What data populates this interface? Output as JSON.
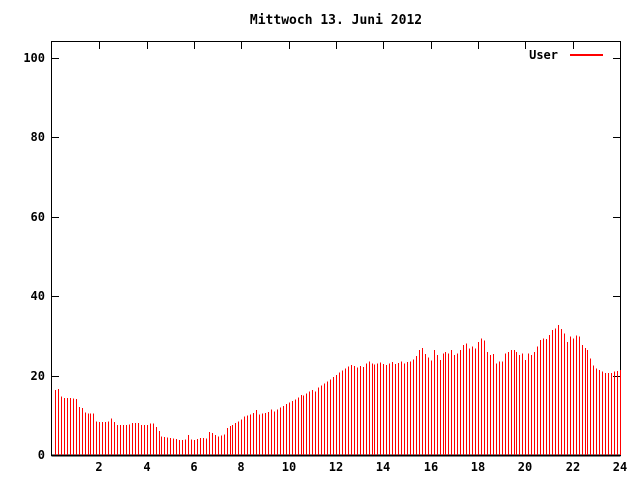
{
  "chart_data": {
    "type": "bar",
    "style": "impulses",
    "title": "Mittwoch 13. Juni 2012",
    "xlabel": "",
    "ylabel": "",
    "xlim": [
      0,
      24
    ],
    "ylim": [
      0,
      104
    ],
    "xticks": [
      2,
      4,
      6,
      8,
      10,
      12,
      14,
      16,
      18,
      20,
      22,
      24
    ],
    "yticks": [
      0,
      20,
      40,
      60,
      80,
      100
    ],
    "grid": false,
    "legend_position": "top-right",
    "background": "#ffffff",
    "border_color": "#000000",
    "text_color": "#000000",
    "x_start_hours": 0.125,
    "x_step_hours": 0.125,
    "series": [
      {
        "name": "User",
        "color": "#ff0000",
        "values": [
          16.4,
          16.6,
          14.7,
          14.4,
          14.4,
          14.4,
          14.2,
          14.1,
          12.1,
          11.9,
          10.7,
          10.5,
          10.4,
          10.4,
          8.4,
          8.3,
          8.3,
          8.3,
          8.4,
          9.2,
          8.3,
          7.6,
          7.6,
          7.6,
          7.6,
          7.7,
          8.0,
          8.0,
          8.0,
          7.5,
          7.5,
          7.5,
          7.9,
          7.9,
          7.0,
          6.0,
          4.7,
          4.5,
          4.4,
          4.3,
          4.2,
          4.0,
          3.8,
          3.8,
          3.9,
          5.1,
          3.9,
          3.8,
          4.0,
          4.3,
          4.3,
          4.2,
          5.8,
          5.5,
          5.1,
          4.7,
          4.9,
          5.2,
          6.8,
          7.3,
          7.6,
          8.1,
          8.4,
          8.9,
          9.7,
          10.0,
          10.2,
          10.6,
          11.3,
          10.2,
          10.4,
          10.6,
          10.8,
          11.4,
          11.0,
          11.5,
          12.0,
          12.4,
          12.8,
          13.2,
          13.6,
          14.0,
          14.5,
          15.1,
          15.0,
          15.5,
          16.0,
          16.4,
          16.0,
          17.0,
          17.5,
          18.0,
          18.5,
          19.0,
          19.6,
          20.2,
          20.8,
          21.3,
          21.8,
          22.3,
          22.7,
          22.4,
          22.0,
          22.4,
          22.2,
          23.0,
          23.5,
          23.1,
          22.8,
          23.0,
          23.3,
          22.9,
          22.7,
          23.1,
          23.4,
          22.9,
          23.2,
          23.6,
          23.0,
          23.4,
          23.5,
          24.0,
          25.0,
          26.5,
          27.0,
          25.5,
          24.5,
          23.8,
          26.4,
          25.2,
          23.9,
          25.6,
          26.0,
          25.6,
          26.4,
          25.2,
          25.6,
          26.4,
          27.7,
          28.1,
          26.8,
          27.3,
          26.8,
          28.5,
          29.3,
          28.9,
          26.0,
          25.2,
          25.4,
          23.1,
          23.5,
          23.5,
          25.6,
          26.0,
          26.4,
          26.4,
          26.0,
          25.2,
          25.6,
          23.9,
          25.6,
          25.2,
          26.0,
          27.3,
          29.0,
          29.4,
          29.2,
          30.2,
          31.5,
          31.9,
          32.8,
          31.7,
          30.6,
          28.5,
          29.8,
          29.4,
          30.1,
          29.8,
          27.7,
          26.9,
          26.4,
          24.3,
          22.6,
          21.8,
          21.4,
          21.0,
          20.6,
          20.6,
          20.6,
          21.0,
          21.2,
          21.4
        ]
      }
    ]
  }
}
